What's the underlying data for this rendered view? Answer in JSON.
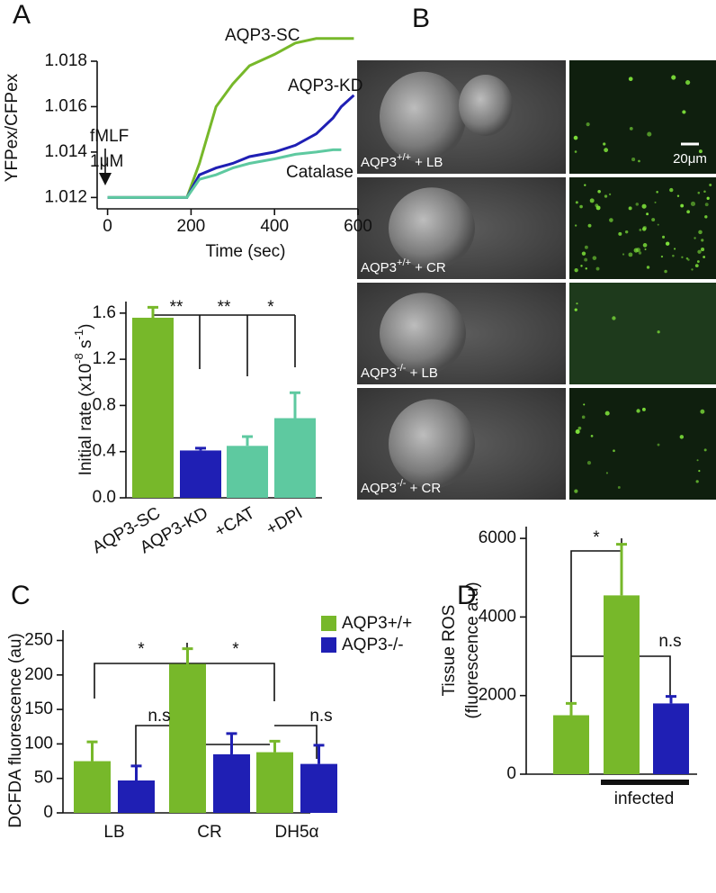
{
  "panel_labels": [
    "A",
    "B",
    "C",
    "D"
  ],
  "chart_data": [
    {
      "type": "line",
      "ylabel": "YFPex/CFPex",
      "xlabel": "Time (sec)",
      "annotations": [
        "fMLF",
        "1μM"
      ],
      "x": [
        0,
        190,
        220,
        260,
        300,
        340,
        400,
        450,
        500,
        540,
        560,
        590
      ],
      "series": [
        {
          "name": "AQP3-SC",
          "color": "#77b82a",
          "values": [
            1.012,
            1.012,
            1.0135,
            1.016,
            1.017,
            1.0178,
            1.0183,
            1.0188,
            1.019,
            1.019,
            1.019,
            1.019
          ]
        },
        {
          "name": "AQP3-KD",
          "color": "#1f1fb4",
          "values": [
            1.012,
            1.012,
            1.013,
            1.0133,
            1.0135,
            1.0138,
            1.014,
            1.0143,
            1.0148,
            1.0155,
            1.016,
            1.0165
          ]
        },
        {
          "name": "Catalase",
          "color": "#5ec9a0",
          "values": [
            1.012,
            1.012,
            1.0128,
            1.013,
            1.0133,
            1.0135,
            1.0137,
            1.0139,
            1.014,
            1.0141,
            1.0141,
            null
          ]
        }
      ],
      "xlim": [
        -25,
        600
      ],
      "xticks": [
        0,
        200,
        400,
        600
      ],
      "ylim": [
        1.0115,
        1.018
      ],
      "yticks": [
        1.012,
        1.014,
        1.016,
        1.018
      ]
    },
    {
      "type": "bar",
      "ylabel": [
        "Initial rate (x10",
        "-8",
        " s",
        "-1",
        ")"
      ],
      "categories": [
        "AQP3-SC",
        "AQP3-KD",
        "+CAT",
        "+DPI"
      ],
      "values": [
        1.56,
        0.41,
        0.45,
        0.69
      ],
      "errors": [
        0.09,
        0.02,
        0.08,
        0.22
      ],
      "colors": [
        "#77b82a",
        "#1f1fb4",
        "#5ec9a0",
        "#5ec9a0"
      ],
      "annotations": [
        "**",
        "**",
        "*"
      ],
      "ylim": [
        0,
        1.7
      ],
      "yticks": [
        {
          "value": 0,
          "label": "0.0"
        },
        0.4,
        0.8,
        1.2,
        1.6
      ]
    },
    {
      "type": "grouped-bar",
      "ylabel": "DCFDA fluorescence (au)",
      "categories": [
        "LB",
        "CR",
        "DH5α"
      ],
      "series": [
        {
          "name": "AQP3+/+",
          "color": "#77b82a",
          "values": [
            75,
            216,
            88
          ],
          "errors": [
            28,
            22,
            16
          ]
        },
        {
          "name": "AQP3-/-",
          "color": "#1f1fb4",
          "values": [
            47,
            85,
            71
          ],
          "errors": [
            21,
            30,
            27
          ]
        }
      ],
      "annotations": [
        "*",
        "*",
        "n.s",
        "n.s"
      ],
      "ylim": [
        0,
        265
      ],
      "yticks": [
        0,
        50,
        100,
        150,
        200,
        250
      ]
    },
    {
      "type": "bar",
      "ylabel": [
        "Tissue ROS",
        "(fluorescence a.u)"
      ],
      "categories": [
        null,
        null,
        null
      ],
      "values": [
        1500,
        4550,
        1800
      ],
      "errors": [
        300,
        1300,
        180
      ],
      "colors": [
        "#77b82a",
        "#77b82a",
        "#1f1fb4"
      ],
      "annotations": [
        "*",
        "n.s",
        "infected"
      ],
      "ylim": [
        0,
        6300
      ],
      "yticks": [
        0,
        2000,
        4000,
        6000
      ]
    }
  ],
  "images": {
    "captions": [
      [
        "AQP3",
        "+/+",
        " + LB"
      ],
      [
        "AQP3",
        "+/+",
        " + CR"
      ],
      [
        "AQP3",
        "-/-",
        " + LB"
      ],
      [
        "AQP3",
        "-/-",
        " + CR"
      ]
    ],
    "scale_bar": "20μm"
  }
}
